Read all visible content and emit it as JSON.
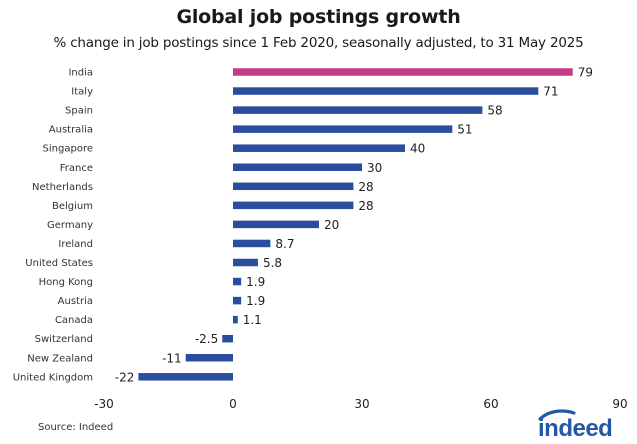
{
  "title": "Global job postings growth",
  "subtitle": "% change in job postings since 1 Feb 2020, seasonally adjusted, to 31 May 2025",
  "source": "Source: Indeed",
  "logo_text": "indeed",
  "colors": {
    "bar": "#2a4d9e",
    "highlight": "#c43c86",
    "logo": "#2557a7"
  },
  "chart_data": {
    "type": "bar",
    "orientation": "horizontal",
    "categories": [
      "India",
      "Italy",
      "Spain",
      "Australia",
      "Singapore",
      "France",
      "Netherlands",
      "Belgium",
      "Germany",
      "Ireland",
      "United States",
      "Hong Kong",
      "Austria",
      "Canada",
      "Switzerland",
      "New Zealand",
      "United Kingdom"
    ],
    "values": [
      79,
      71,
      58,
      51,
      40,
      30,
      28,
      28,
      20,
      8.7,
      5.8,
      1.9,
      1.9,
      1.1,
      -2.5,
      -11,
      -22
    ],
    "value_labels": [
      "79",
      "71",
      "58",
      "51",
      "40",
      "30",
      "28",
      "28",
      "20",
      "8.7",
      "5.8",
      "1.9",
      "1.9",
      "1.1",
      "-2.5",
      "-11",
      "-22"
    ],
    "highlight": "India",
    "xlim": [
      -30,
      90
    ],
    "xticks": [
      -30,
      0,
      30,
      60,
      90
    ],
    "grid": false,
    "legend": "none"
  }
}
